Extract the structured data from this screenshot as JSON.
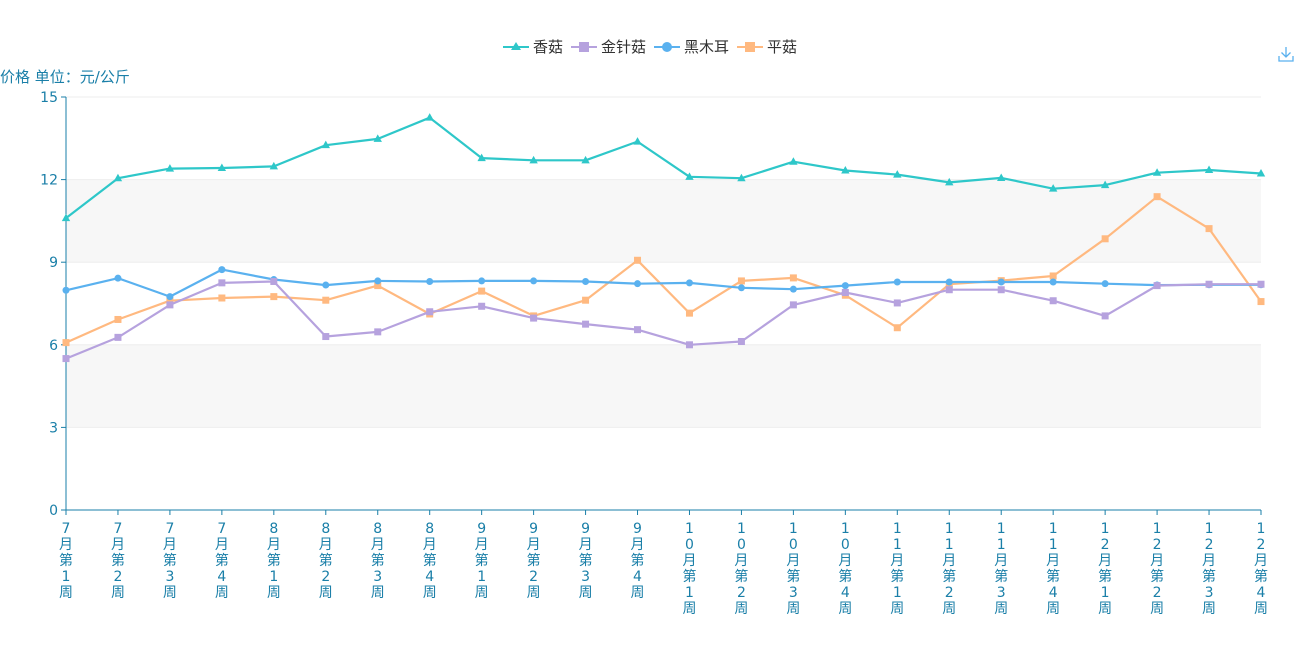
{
  "chart_data": {
    "type": "line",
    "ylabel": "价格 单位：元/公斤",
    "ylim": [
      0,
      15
    ],
    "yticks": [
      0,
      3,
      6,
      9,
      12,
      15
    ],
    "grid": "horizontal",
    "legend_position": "top-center",
    "categories": [
      "7月第1周",
      "7月第2周",
      "7月第3周",
      "7月第4周",
      "8月第1周",
      "8月第2周",
      "8月第3周",
      "8月第4周",
      "9月第1周",
      "9月第2周",
      "9月第3周",
      "9月第4周",
      "10月第1周",
      "10月第2周",
      "10月第3周",
      "10月第4周",
      "11月第1周",
      "11月第2周",
      "11月第3周",
      "11月第4周",
      "12月第1周",
      "12月第2周",
      "12月第3周",
      "12月第4周"
    ],
    "series": [
      {
        "name": "香菇",
        "color": "#2ec7c9",
        "marker": "triangle",
        "values": [
          10.6,
          12.05,
          12.4,
          12.42,
          12.48,
          13.25,
          13.48,
          14.25,
          12.78,
          12.7,
          12.7,
          13.38,
          12.1,
          12.05,
          12.65,
          12.33,
          12.18,
          11.9,
          12.06,
          11.67,
          11.8,
          12.25,
          12.35,
          12.22
        ]
      },
      {
        "name": "金针菇",
        "color": "#b6a2de",
        "marker": "square",
        "values": [
          5.5,
          6.27,
          7.45,
          8.25,
          8.3,
          6.3,
          6.47,
          7.2,
          7.4,
          6.97,
          6.75,
          6.55,
          6.0,
          6.12,
          7.45,
          7.9,
          7.52,
          8.0,
          8.0,
          7.6,
          7.05,
          8.15,
          8.2,
          8.2
        ]
      },
      {
        "name": "黑木耳",
        "color": "#5ab1ef",
        "marker": "circle",
        "values": [
          7.98,
          8.42,
          7.75,
          8.73,
          8.37,
          8.17,
          8.32,
          8.3,
          8.32,
          8.32,
          8.3,
          8.22,
          8.25,
          8.07,
          8.02,
          8.15,
          8.28,
          8.28,
          8.28,
          8.28,
          8.22,
          8.17,
          8.18,
          8.18
        ]
      },
      {
        "name": "平菇",
        "color": "#ffb980",
        "marker": "square",
        "values": [
          6.08,
          6.92,
          7.6,
          7.7,
          7.75,
          7.62,
          8.15,
          7.12,
          7.95,
          7.05,
          7.62,
          9.07,
          7.15,
          8.32,
          8.43,
          7.8,
          6.62,
          8.2,
          8.33,
          8.5,
          9.85,
          11.38,
          10.22,
          7.57
        ]
      }
    ]
  },
  "toolbar": {
    "download_icon": "download-icon"
  }
}
